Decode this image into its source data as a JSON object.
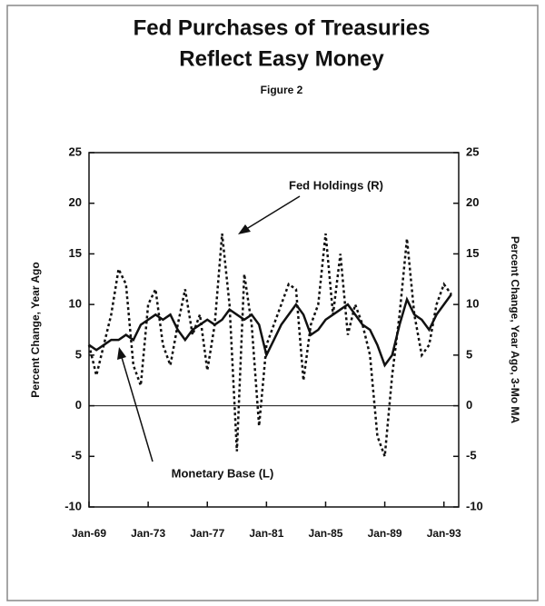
{
  "chart_data": {
    "type": "line",
    "title": "Fed Purchases of Treasuries",
    "title_line2": "Reflect Easy Money",
    "subtitle": "Figure 2",
    "ylabel": "Percent Change, Year Ago",
    "y2label": "Percent Change, Year Ago, 3-Mo MA",
    "annotations": [
      "Fed Holdings (R)",
      "Monetary Base (L)"
    ],
    "x": [
      1969,
      1969.5,
      1970,
      1970.5,
      1971,
      1971.5,
      1972,
      1972.5,
      1973,
      1973.5,
      1974,
      1974.5,
      1975,
      1975.5,
      1976,
      1976.5,
      1977,
      1977.5,
      1978,
      1978.5,
      1979,
      1979.5,
      1980,
      1980.5,
      1981,
      1981.5,
      1982,
      1982.5,
      1983,
      1983.5,
      1984,
      1984.5,
      1985,
      1985.5,
      1986,
      1986.5,
      1987,
      1987.5,
      1988,
      1988.5,
      1989,
      1989.5,
      1990,
      1990.5,
      1991,
      1991.5,
      1992,
      1992.5,
      1993,
      1993.5
    ],
    "series": [
      {
        "name": "Monetary Base (L)",
        "color": "#111111",
        "style": "solid",
        "values": [
          6,
          5.5,
          6,
          6.5,
          6.5,
          7,
          6.5,
          8,
          8.5,
          9,
          8.5,
          9,
          7.5,
          6.5,
          7.5,
          8,
          8.5,
          8,
          8.5,
          9.5,
          9,
          8.5,
          9,
          8,
          5,
          6.5,
          8,
          9,
          10,
          9,
          7,
          7.5,
          8.5,
          9,
          9.5,
          10,
          9,
          8,
          7.5,
          6,
          4,
          5,
          8,
          10.5,
          9,
          8.5,
          7.5,
          9,
          10,
          11
        ]
      },
      {
        "name": "Fed Holdings (R)",
        "color": "#111111",
        "style": "dotted",
        "axis": "y2",
        "values": [
          6,
          3,
          6,
          9,
          13.5,
          12,
          4,
          2,
          10,
          11.5,
          6,
          4,
          8,
          11.5,
          7,
          9,
          3.5,
          8,
          17,
          10,
          -4.5,
          13,
          8,
          -2,
          6,
          8,
          10,
          12,
          11.5,
          2.5,
          8,
          10,
          17,
          9,
          15,
          7,
          10,
          8,
          5,
          -3,
          -5,
          3,
          9,
          16.5,
          9,
          5,
          6,
          10,
          12,
          11
        ]
      }
    ],
    "xlim": [
      1969,
      1994
    ],
    "xticks": [
      {
        "value": 1969,
        "label": "Jan-69"
      },
      {
        "value": 1973,
        "label": "Jan-73"
      },
      {
        "value": 1977,
        "label": "Jan-77"
      },
      {
        "value": 1981,
        "label": "Jan-81"
      },
      {
        "value": 1985,
        "label": "Jan-85"
      },
      {
        "value": 1989,
        "label": "Jan-89"
      },
      {
        "value": 1993,
        "label": "Jan-93"
      }
    ],
    "ylim": [
      -10,
      25
    ],
    "yticks": [
      -10,
      -5,
      0,
      5,
      10,
      15,
      20,
      25
    ],
    "y2lim": [
      -10,
      25
    ],
    "y2ticks": [
      -10,
      -5,
      0,
      5,
      10,
      15,
      20,
      25
    ],
    "zero_line": true
  }
}
